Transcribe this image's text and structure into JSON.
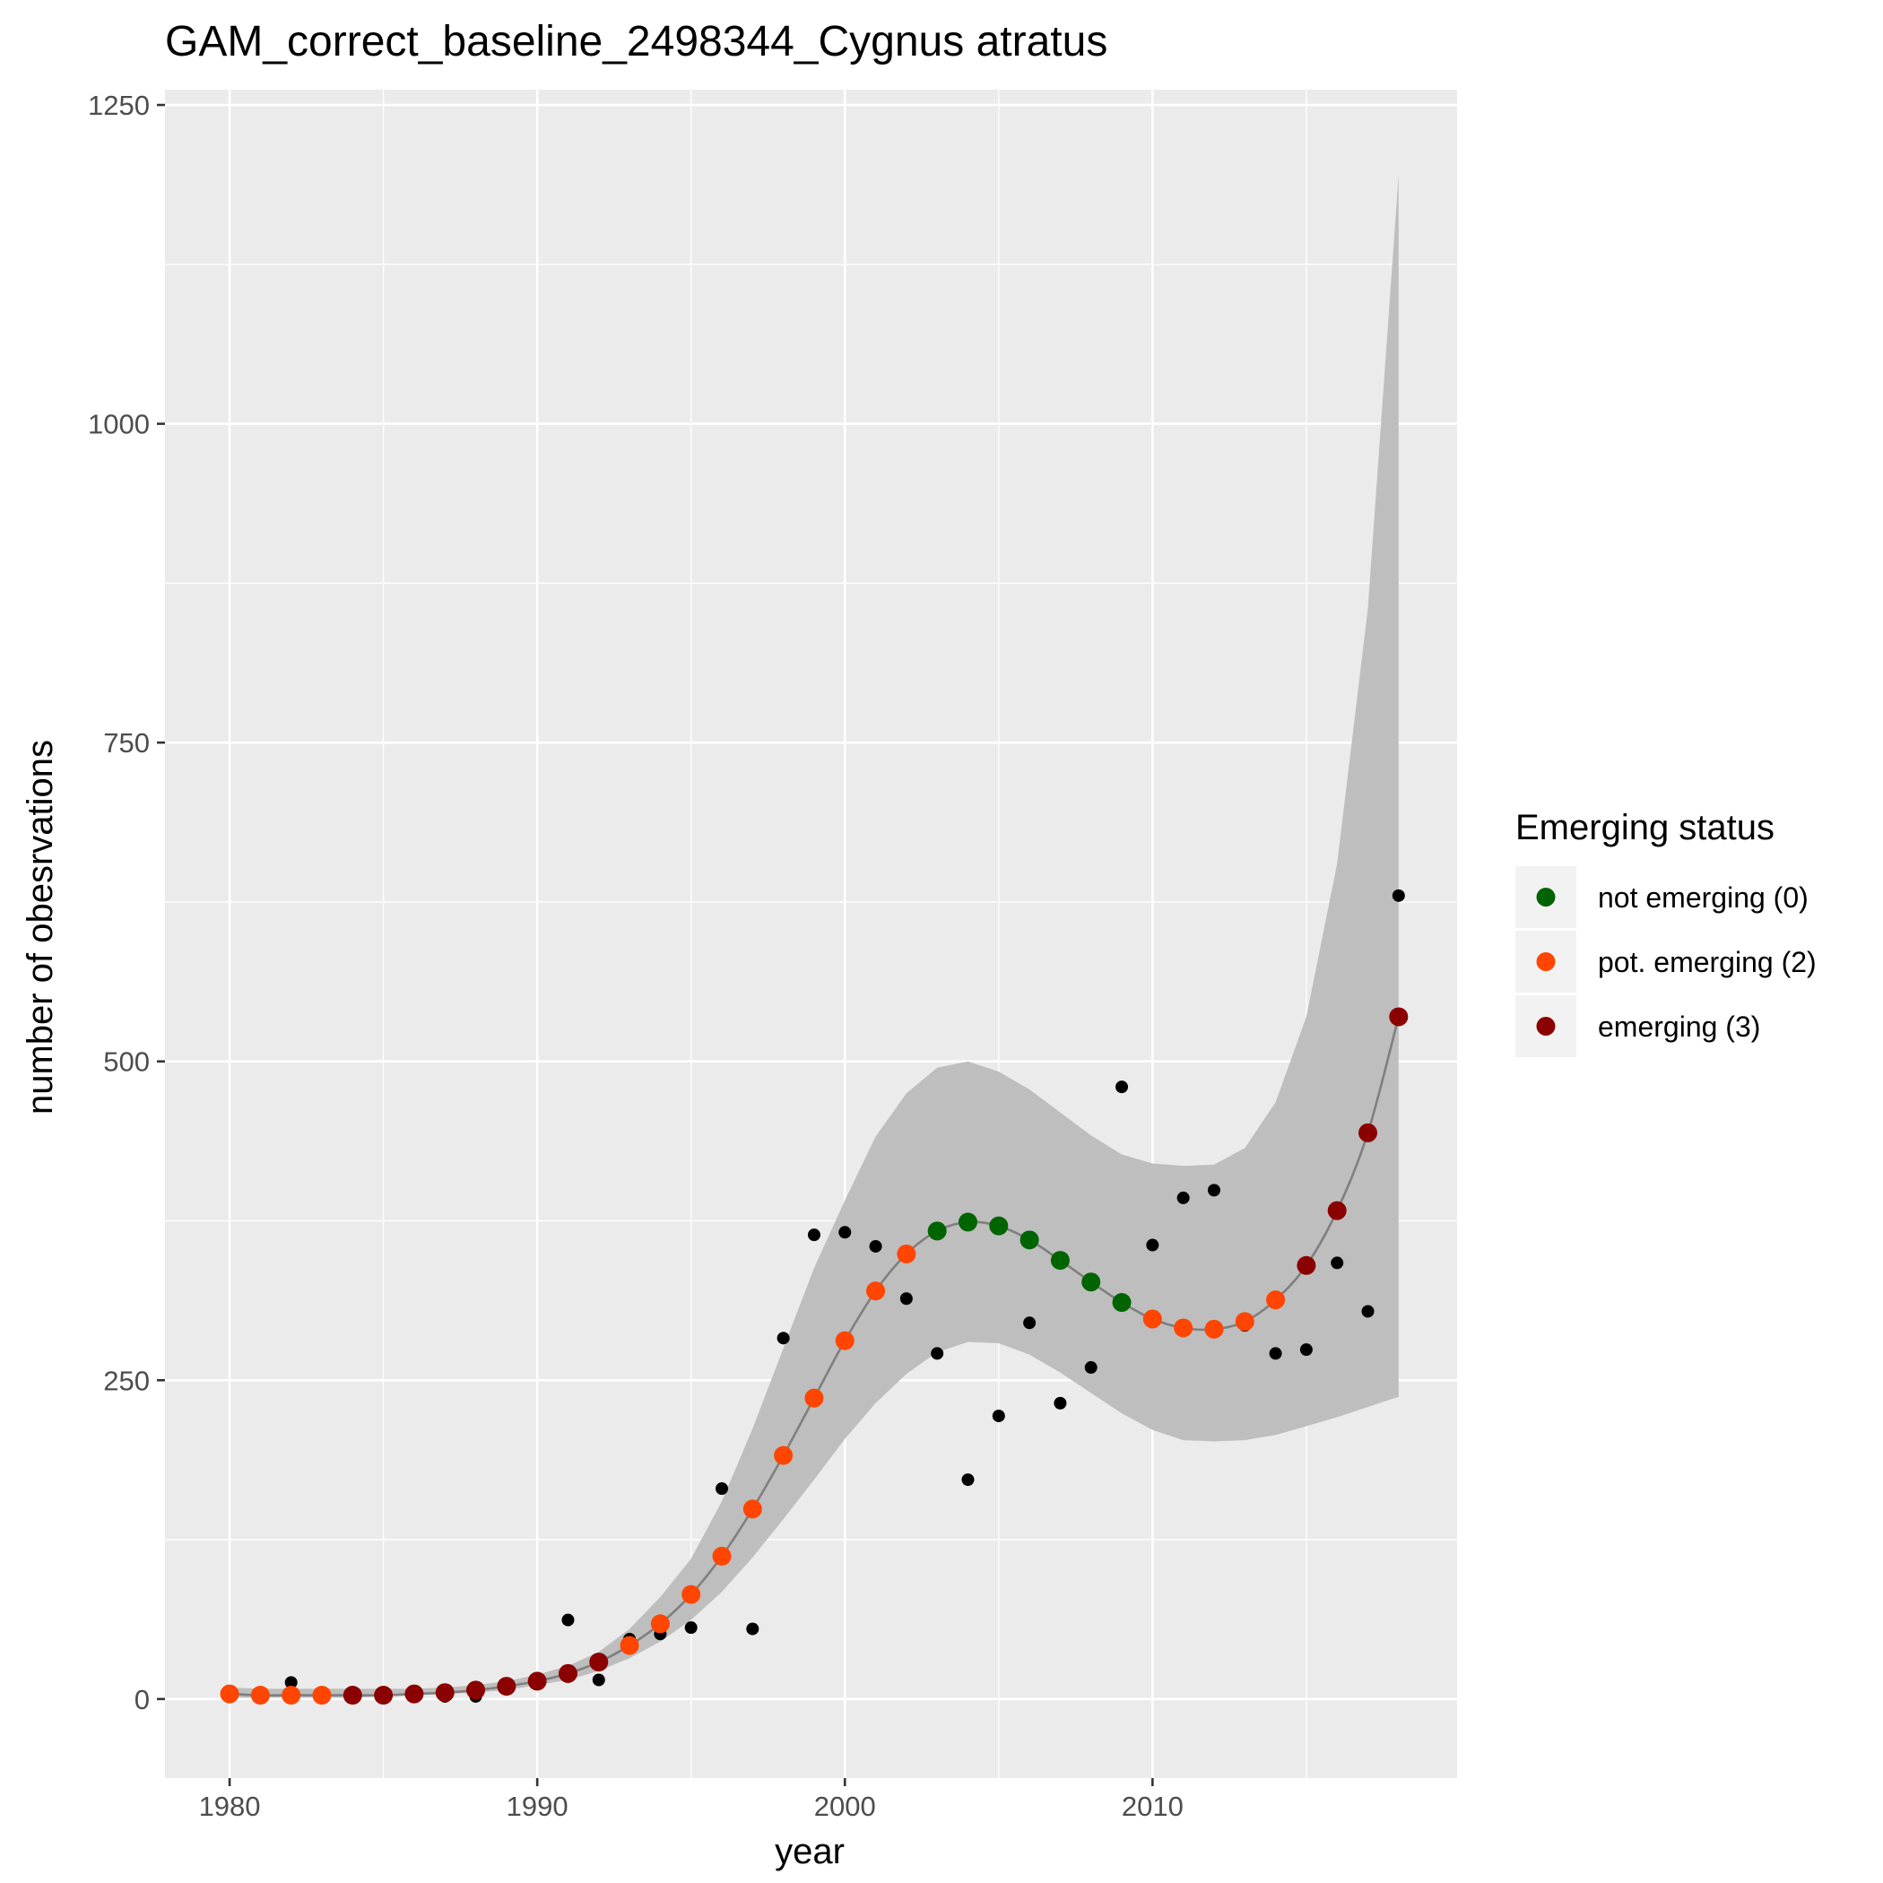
{
  "chart_data": {
    "type": "scatter",
    "title": "GAM_correct_baseline_2498344_Cygnus atratus",
    "xlabel": "year",
    "ylabel": "number of obesrvations",
    "xlim": [
      1977.9,
      2019.9
    ],
    "ylim": [
      -62,
      1262
    ],
    "x_ticks": [
      1980,
      1990,
      2000,
      2010
    ],
    "y_ticks": [
      0,
      250,
      500,
      750,
      1000,
      1250
    ],
    "grid": true,
    "legend": {
      "title": "Emerging status",
      "position": "right",
      "entries": [
        {
          "label": "not emerging (0)",
          "color": "#006400"
        },
        {
          "label": "pot. emerging (2)",
          "color": "#FF4500"
        },
        {
          "label": "emerging (3)",
          "color": "#8B0000"
        }
      ]
    },
    "colors": {
      "panel": "#EBEBEB",
      "grid": "#FFFFFF",
      "ribbon": "#BEBEBE",
      "fit_line": "#7F7F7F",
      "observed": "#000000"
    },
    "observed": {
      "x": [
        1980,
        1981,
        1982,
        1983,
        1984,
        1985,
        1986,
        1987,
        1988,
        1989,
        1990,
        1991,
        1992,
        1993,
        1994,
        1995,
        1996,
        1997,
        1998,
        1999,
        2000,
        2001,
        2002,
        2003,
        2004,
        2005,
        2006,
        2007,
        2008,
        2009,
        2010,
        2011,
        2012,
        2013,
        2014,
        2015,
        2016,
        2017,
        2018
      ],
      "y": [
        4,
        3,
        13,
        4,
        2,
        3,
        2,
        2,
        2,
        12,
        14,
        62,
        15,
        47,
        51,
        56,
        165,
        55,
        283,
        364,
        366,
        355,
        314,
        271,
        172,
        222,
        295,
        232,
        260,
        480,
        356,
        393,
        399,
        293,
        271,
        274,
        342,
        304,
        630
      ]
    },
    "fit": {
      "x": [
        1980,
        1981,
        1982,
        1983,
        1984,
        1985,
        1986,
        1987,
        1988,
        1989,
        1990,
        1991,
        1992,
        1993,
        1994,
        1995,
        1996,
        1997,
        1998,
        1999,
        2000,
        2001,
        2002,
        2003,
        2004,
        2005,
        2006,
        2007,
        2008,
        2009,
        2010,
        2011,
        2012,
        2013,
        2014,
        2015,
        2016,
        2017,
        2018
      ],
      "y": [
        4,
        3,
        3,
        3,
        3,
        3,
        4,
        5,
        7,
        10,
        14,
        20,
        29,
        42,
        59,
        82,
        112,
        149,
        191,
        236,
        281,
        320,
        349,
        367,
        374,
        371,
        360,
        344,
        327,
        311,
        298,
        291,
        290,
        296,
        313,
        340,
        383,
        444,
        535
      ],
      "status": [
        2,
        2,
        2,
        2,
        3,
        3,
        3,
        3,
        3,
        3,
        3,
        3,
        3,
        2,
        2,
        2,
        2,
        2,
        2,
        2,
        2,
        2,
        2,
        0,
        0,
        0,
        0,
        0,
        0,
        0,
        2,
        2,
        2,
        2,
        2,
        3,
        3,
        3,
        3
      ]
    },
    "ribbon": {
      "x": [
        1980,
        1981,
        1982,
        1983,
        1984,
        1985,
        1986,
        1987,
        1988,
        1989,
        1990,
        1991,
        1992,
        1993,
        1994,
        1995,
        1996,
        1997,
        1998,
        1999,
        2000,
        2001,
        2002,
        2003,
        2004,
        2005,
        2006,
        2007,
        2008,
        2009,
        2010,
        2011,
        2012,
        2013,
        2014,
        2015,
        2016,
        2017,
        2018
      ],
      "lower": [
        1,
        1,
        1,
        1,
        1,
        2,
        3,
        4,
        5,
        7,
        11,
        15,
        22,
        32,
        45,
        62,
        84,
        111,
        141,
        172,
        204,
        232,
        255,
        272,
        280,
        279,
        270,
        256,
        240,
        224,
        211,
        203,
        202,
        203,
        207,
        214,
        221,
        229,
        237
      ],
      "upper": [
        9,
        8,
        8,
        8,
        8,
        8,
        8,
        9,
        11,
        14,
        19,
        26,
        37,
        55,
        80,
        110,
        155,
        212,
        275,
        338,
        391,
        441,
        475,
        495,
        500,
        492,
        478,
        460,
        442,
        427,
        420,
        418,
        419,
        432,
        468,
        535,
        655,
        855,
        1195
      ]
    }
  }
}
